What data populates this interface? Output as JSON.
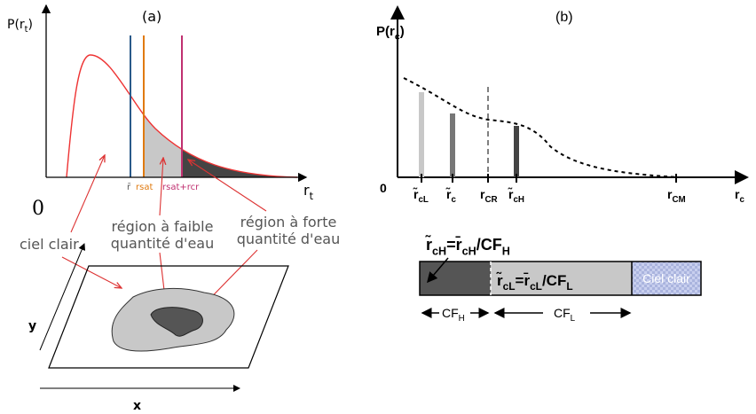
{
  "panel_a": {
    "label": "(a)",
    "y_axis": [
      {
        "text": "P(r"
      },
      {
        "text": "t",
        "sub": true
      },
      {
        "text": ")"
      }
    ],
    "x_axis": [
      {
        "text": "r"
      },
      {
        "text": "t",
        "sub": true
      }
    ],
    "origin": "0",
    "markers": [
      "r̄",
      "rsat",
      "rsat+rcr"
    ],
    "annotations": {
      "clear_sky": [
        "ciel clair"
      ],
      "low_water": [
        "région à faible",
        "quantité d'eau"
      ],
      "high_water": [
        "région à forte",
        "quantité d'eau"
      ]
    },
    "map_y": "y",
    "map_x": "x"
  },
  "panel_b": {
    "label": "(b)",
    "y_axis": [
      {
        "text": "P(r"
      },
      {
        "text": "c",
        "sub": true
      },
      {
        "text": ")"
      }
    ],
    "origin": "0",
    "ticks": [
      [
        {
          "text": "r̃"
        },
        {
          "text": "cL",
          "sub": true
        }
      ],
      [
        {
          "text": "r̃"
        },
        {
          "text": "c",
          "sub": true
        }
      ],
      [
        {
          "text": "r"
        },
        {
          "text": "CR",
          "sub": true
        }
      ],
      [
        {
          "text": "r̃"
        },
        {
          "text": "cH",
          "sub": true
        }
      ],
      [
        {
          "text": "r"
        },
        {
          "text": "CM",
          "sub": true
        }
      ],
      [
        {
          "text": "r"
        },
        {
          "text": "c",
          "sub": true
        }
      ]
    ],
    "formula_high": [
      {
        "text": "r̃"
      },
      {
        "text": "cH",
        "sub": true
      },
      {
        "text": "=r̄"
      },
      {
        "text": "cH",
        "sub": true
      },
      {
        "text": "/CF"
      },
      {
        "text": "H",
        "sub": true
      }
    ],
    "formula_low": [
      {
        "text": "r̃"
      },
      {
        "text": "cL",
        "sub": true
      },
      {
        "text": "=r̄"
      },
      {
        "text": "cL",
        "sub": true
      },
      {
        "text": "/CF"
      },
      {
        "text": "L",
        "sub": true
      }
    ],
    "clear_sky": "Ciel clair",
    "cf_high": [
      {
        "text": "CF"
      },
      {
        "text": "H",
        "sub": true
      }
    ],
    "cf_low": [
      {
        "text": "CF"
      },
      {
        "text": "L",
        "sub": true
      }
    ]
  }
}
